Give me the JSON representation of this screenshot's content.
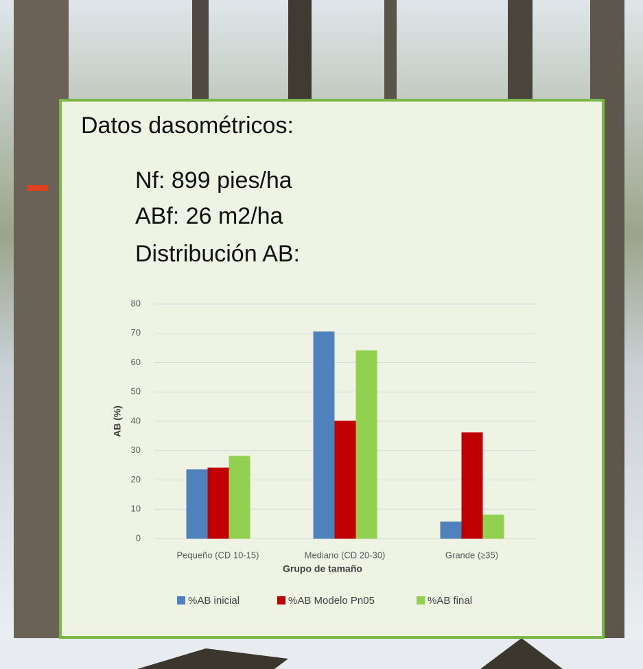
{
  "heading": "Datos dasométricos:",
  "lines": [
    "Nf: 899 pies/ha",
    "ABf: 26 m2/ha",
    "Distribución AB:"
  ],
  "chart_data": {
    "type": "bar",
    "categories": [
      "Pequeño (CD 10-15)",
      "Mediano (CD 20-30)",
      "Grande (≥35)"
    ],
    "series": [
      {
        "name": "%AB inicial",
        "color": "#4f81bd",
        "values": [
          23.6,
          70.6,
          5.8
        ]
      },
      {
        "name": "%AB Modelo Pn05",
        "color": "#c00000",
        "values": [
          24.2,
          40.2,
          36.2
        ]
      },
      {
        "name": "%AB final",
        "color": "#92d050",
        "values": [
          28.2,
          64.2,
          8.2
        ]
      }
    ],
    "x_label": "Grupo de tamaño",
    "y_label": "AB (%)",
    "ylim": [
      0,
      80
    ],
    "yticks": [
      0,
      10,
      20,
      30,
      40,
      50,
      60,
      70,
      80
    ],
    "grid": true,
    "legend": "bottom"
  }
}
